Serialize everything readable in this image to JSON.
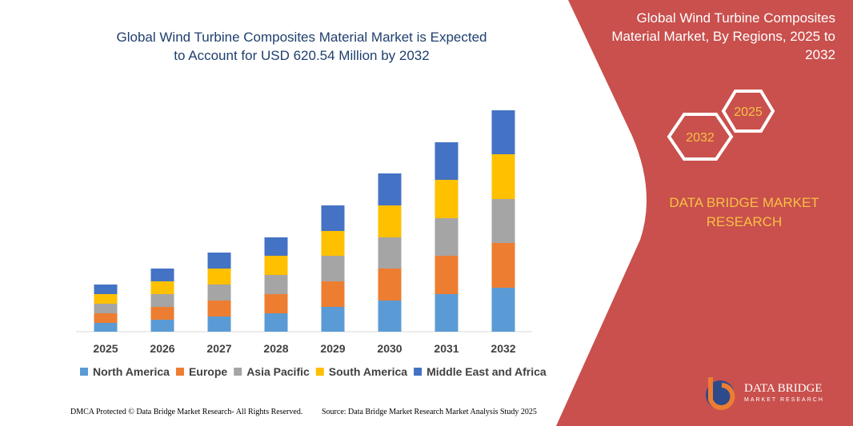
{
  "chart_data": {
    "type": "bar",
    "stacked": true,
    "title": [
      "Global Wind Turbine Composites Material Market is Expected",
      "to Account for USD 620.54 Million by 2032"
    ],
    "categories": [
      "2025",
      "2026",
      "2027",
      "2028",
      "2029",
      "2030",
      "2031",
      "2032"
    ],
    "series": [
      {
        "name": "North America",
        "color": "#5b9bd5",
        "values": [
          11,
          15,
          19,
          23,
          31,
          39,
          47,
          55
        ]
      },
      {
        "name": "Europe",
        "color": "#ed7d31",
        "values": [
          12,
          16,
          20,
          24,
          32,
          40,
          48,
          56
        ]
      },
      {
        "name": "Asia Pacific",
        "color": "#a5a5a5",
        "values": [
          12,
          16,
          20,
          24,
          32,
          39,
          47,
          55
        ]
      },
      {
        "name": "South America",
        "color": "#ffc000",
        "values": [
          12,
          16,
          20,
          24,
          31,
          40,
          48,
          56
        ]
      },
      {
        "name": "Middle East and Africa",
        "color": "#4472c4",
        "values": [
          12,
          16,
          20,
          23,
          32,
          40,
          47,
          55
        ]
      }
    ]
  },
  "panel": {
    "title": [
      "Global Wind Turbine Composites",
      "Material Market, By Regions, 2025 to",
      "2032"
    ],
    "hex_labels": [
      "2025",
      "2032"
    ],
    "brand": [
      "DATA BRIDGE MARKET",
      "RESEARCH"
    ]
  },
  "logo": {
    "name": "DATA BRIDGE",
    "tagline": "MARKET RESEARCH"
  },
  "footer": {
    "left": "DMCA Protected © Data Bridge Market Research- All Rights Reserved.",
    "right": "Source: Data Bridge Market Research Market Analysis Study 2025"
  }
}
